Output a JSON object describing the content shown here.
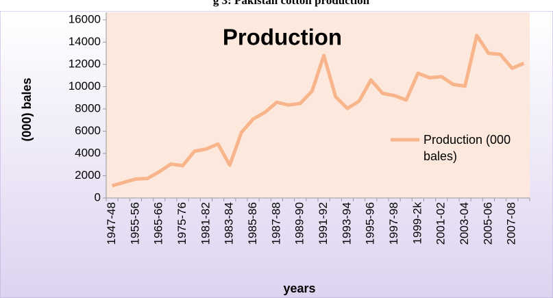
{
  "chart_data": {
    "type": "line",
    "caption": "g 3: Pakistan cotton production",
    "title": "Production",
    "y_label": "(000) bales",
    "x_label": "years",
    "categories": [
      "1947-48",
      null,
      "1955-56",
      null,
      "1965-66",
      null,
      "1975-76",
      null,
      "1981-82",
      null,
      "1983-84",
      null,
      "1985-86",
      null,
      "1987-88",
      null,
      "1989-90",
      null,
      "1991-92",
      null,
      "1993-94",
      null,
      "1995-96",
      null,
      "1997-98",
      null,
      "1999-2k",
      null,
      "2001-02",
      null,
      "2003-04",
      null,
      "2005-06",
      null,
      "2007-08",
      null
    ],
    "series": [
      {
        "name": "Production (000 bales)",
        "color": "#f8b48a",
        "values": [
          1100,
          1400,
          1700,
          1750,
          2350,
          3050,
          2900,
          4200,
          4400,
          4850,
          2950,
          5900,
          7100,
          7700,
          8600,
          8350,
          8500,
          9600,
          12800,
          9100,
          8050,
          8700,
          10600,
          9400,
          9200,
          8800,
          11200,
          10800,
          10900,
          10200,
          10050,
          14600,
          13000,
          12900,
          11650,
          12100
        ]
      }
    ],
    "ylim": [
      0,
      16000
    ],
    "yticks": [
      0,
      2000,
      4000,
      6000,
      8000,
      10000,
      12000,
      14000,
      16000
    ],
    "grid": false
  }
}
